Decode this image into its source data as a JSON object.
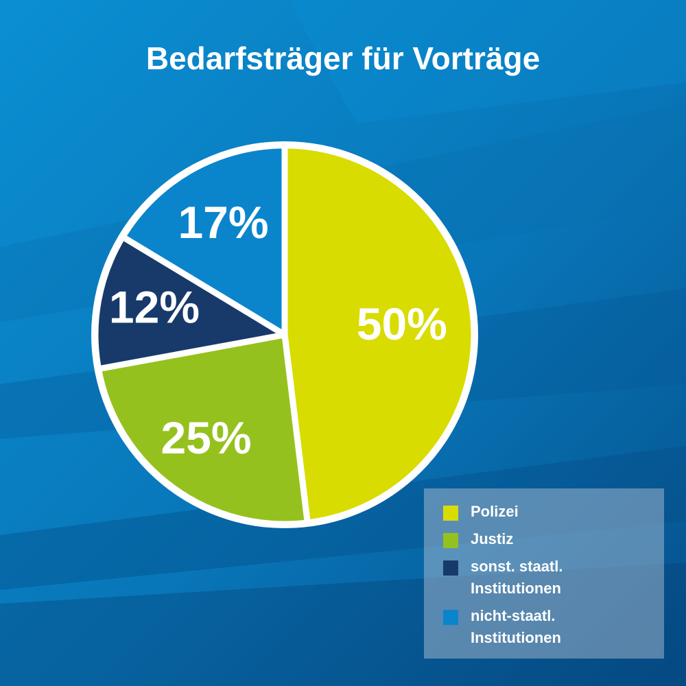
{
  "colors": {
    "background": "#0a7cc0",
    "polizei": "#d9dc00",
    "justiz": "#95c11f",
    "sonst": "#173a6a",
    "nicht": "#0a85cc",
    "outline": "#ffffff"
  },
  "chart_data": {
    "type": "pie",
    "title": "Bedarfsträger für Vorträge",
    "legend_position": "bottom-right",
    "slices": [
      {
        "name": "Polizei",
        "value": 50,
        "label": "50%",
        "color": "#d9dc00"
      },
      {
        "name": "Justiz",
        "value": 25,
        "label": "25%",
        "color": "#95c11f"
      },
      {
        "name": "sonst. staatl. Institutionen",
        "value": 12,
        "label": "12%",
        "color": "#173a6a"
      },
      {
        "name": "nicht-staatl. Institutionen",
        "value": 17,
        "label": "17%",
        "color": "#0a85cc"
      }
    ],
    "legend": [
      {
        "label": "Polizei",
        "color": "#d9dc00"
      },
      {
        "label": "Justiz",
        "color": "#95c11f"
      },
      {
        "label": "sonst. staatl.\nInstitutionen",
        "color": "#173a6a"
      },
      {
        "label": "nicht-staatl.\nInstitutionen",
        "color": "#0a85cc"
      }
    ]
  }
}
